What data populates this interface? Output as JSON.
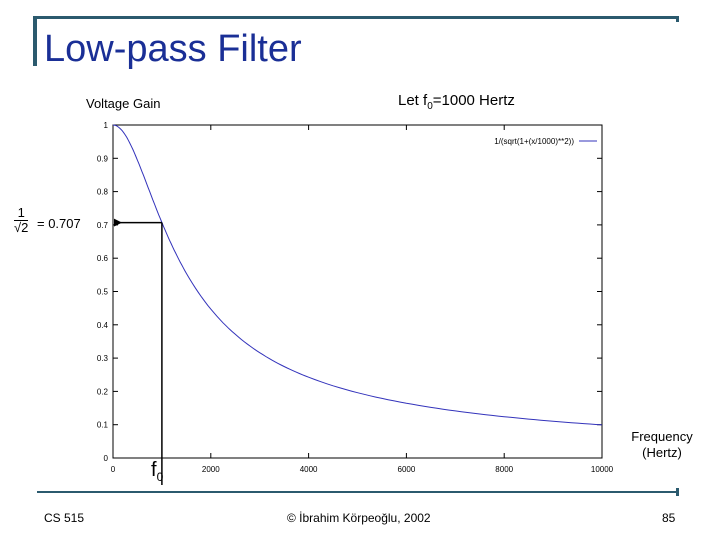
{
  "slide": {
    "title": "Low-pass Filter",
    "footer_left": "CS 515",
    "footer_center": "© İbrahim Körpeoğlu, 2002",
    "page_number": "85"
  },
  "annotations": {
    "voltage_gain": "Voltage Gain",
    "let_prefix": "Let f",
    "let_sub": "0",
    "let_suffix": "=1000 Hertz",
    "frequency_line1": "Frequency",
    "frequency_line2": "(Hertz)",
    "fraction_numerator": "1",
    "fraction_denominator": "√2",
    "equals_value": "= 0.707",
    "f0_main": "f",
    "f0_sub": "0"
  },
  "colors": {
    "title": "#1a2f96",
    "rule": "#2b5a6e",
    "curve": "#3333bb",
    "legend_line": "#3333bb",
    "marker_line": "#000000"
  },
  "chart_data": {
    "type": "line",
    "function": "1/(sqrt(1+(x/1000)**2))",
    "x": [
      0,
      250,
      500,
      750,
      1000,
      1250,
      1500,
      2000,
      2500,
      3000,
      3500,
      4000,
      5000,
      6000,
      7000,
      8000,
      9000,
      10000
    ],
    "series": [
      {
        "name": "1/(sqrt(1+(x/1000)**2))",
        "values": [
          1,
          0.97,
          0.894,
          0.8,
          0.707,
          0.625,
          0.555,
          0.447,
          0.371,
          0.316,
          0.275,
          0.243,
          0.196,
          0.164,
          0.141,
          0.124,
          0.11,
          0.0995
        ]
      }
    ],
    "xlim": [
      0,
      10000
    ],
    "ylim": [
      0,
      1
    ],
    "x_ticks": [
      0,
      2000,
      4000,
      6000,
      8000,
      10000
    ],
    "x_tick_labels": [
      "0",
      "2000",
      "4000",
      "6000",
      "8000",
      "10000"
    ],
    "y_ticks": [
      0,
      0.1,
      0.2,
      0.3,
      0.4,
      0.5,
      0.6,
      0.7,
      0.8,
      0.9,
      1
    ],
    "y_tick_labels": [
      "0",
      "0.1",
      "0.2",
      "0.3",
      "0.4",
      "0.5",
      "0.6",
      "0.7",
      "0.8",
      "0.9",
      "1"
    ],
    "marker": {
      "x": 1000,
      "y": 0.707
    },
    "legend_position": "top-right",
    "grid": false
  }
}
